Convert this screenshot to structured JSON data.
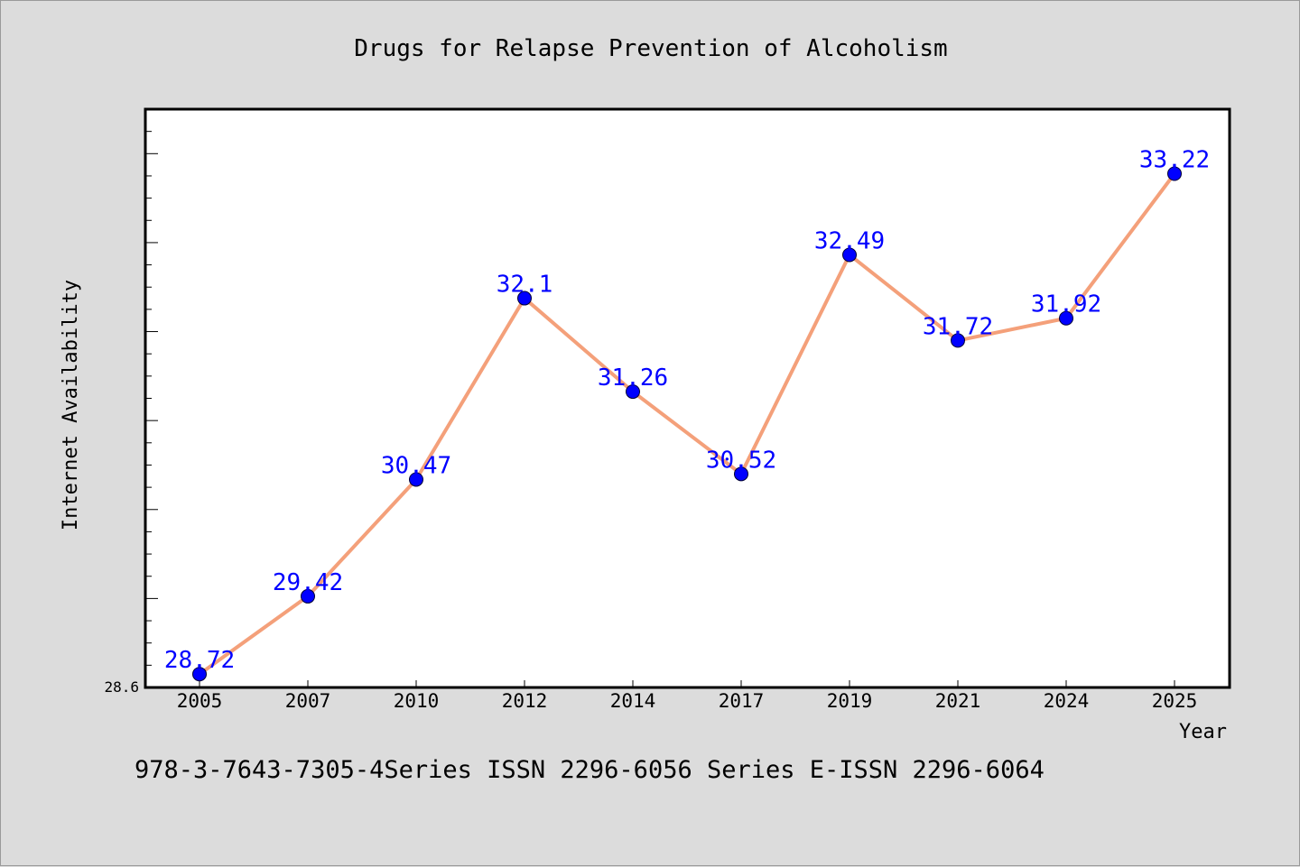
{
  "chart_data": {
    "type": "line",
    "title": "Drugs for Relapse Prevention of Alcoholism",
    "xlabel": "Year",
    "ylabel": "Internet Availability",
    "ymin_label": "28.6",
    "categories": [
      "2005",
      "2007",
      "2010",
      "2012",
      "2014",
      "2017",
      "2019",
      "2021",
      "2024",
      "2025"
    ],
    "series": [
      {
        "values": [
          28.72,
          29.42,
          30.47,
          32.1,
          31.26,
          30.52,
          32.49,
          31.72,
          31.92,
          33.22
        ],
        "labels": [
          "28.72",
          "29.42",
          "30.47",
          "32.1",
          "31.26",
          "30.52",
          "32.49",
          "31.72",
          "31.92",
          "33.22"
        ],
        "line_color": "#f4a07a",
        "marker_color": "#0000ff"
      }
    ],
    "ylim": [
      28.6,
      33.8
    ],
    "legend": "none",
    "grid": false
  },
  "footer_text": "978-3-7643-7305-4Series ISSN 2296-6056 Series E-ISSN 2296-6064"
}
